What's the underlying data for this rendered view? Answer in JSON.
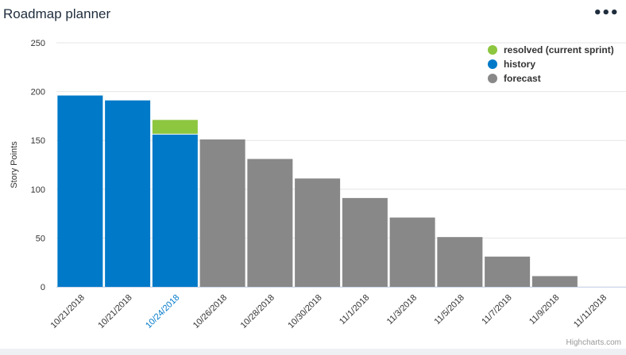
{
  "header": {
    "title": "Roadmap planner",
    "menu_icon": "more-horizontal-icon"
  },
  "credits": "Highcharts.com",
  "colors": {
    "resolved": "#8dc63f",
    "history": "#0079c8",
    "forecast": "#888888",
    "grid": "#e6e6e6",
    "axis_text": "#333333",
    "highlight_tick": "#0079c8"
  },
  "chart_data": {
    "type": "bar",
    "stacked": true,
    "title": "",
    "xlabel": "",
    "ylabel": "Story Points",
    "ylim": [
      0,
      250
    ],
    "yticks": [
      0,
      50,
      100,
      150,
      200,
      250
    ],
    "grid": true,
    "legend_placement": "top-right",
    "categories": [
      "10/21/2018",
      "10/21/2018",
      "10/24/2018",
      "10/26/2018",
      "10/28/2018",
      "10/30/2018",
      "11/1/2018",
      "11/3/2018",
      "11/5/2018",
      "11/7/2018",
      "11/9/2018",
      "11/11/2018"
    ],
    "highlight_category_index": 2,
    "series": [
      {
        "name": "resolved (current sprint)",
        "color": "#8dc63f",
        "values": [
          0,
          0,
          15,
          0,
          0,
          0,
          0,
          0,
          0,
          0,
          0,
          0
        ]
      },
      {
        "name": "history",
        "color": "#0079c8",
        "values": [
          196,
          191,
          156,
          0,
          0,
          0,
          0,
          0,
          0,
          0,
          0,
          0
        ]
      },
      {
        "name": "forecast",
        "color": "#888888",
        "values": [
          0,
          0,
          0,
          151,
          131,
          111,
          91,
          71,
          51,
          31,
          11,
          0
        ]
      }
    ]
  }
}
